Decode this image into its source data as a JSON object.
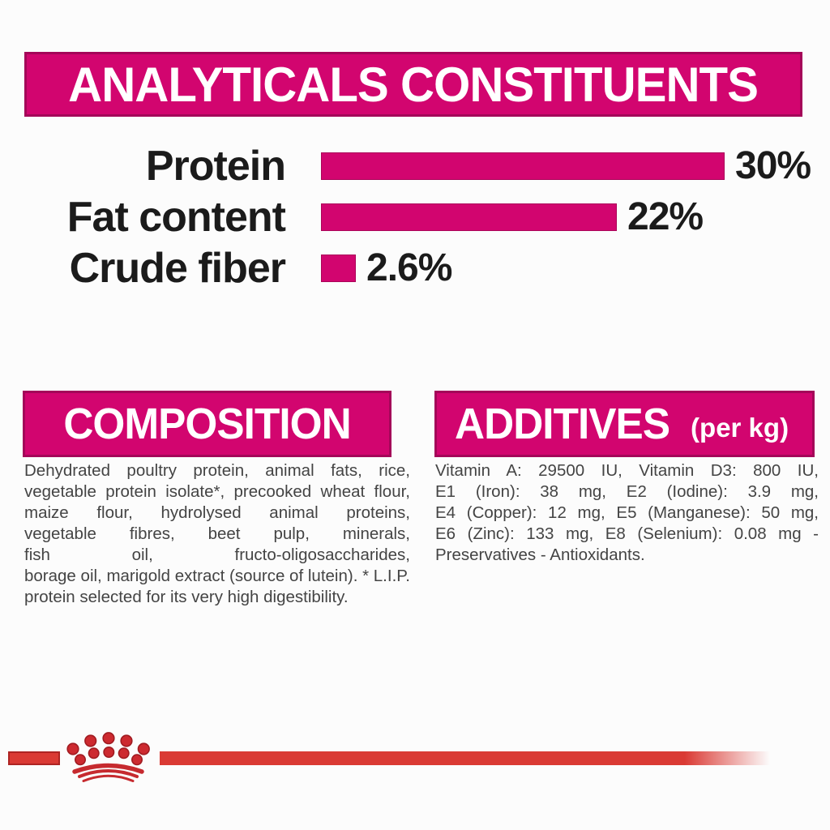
{
  "banner": {
    "title": "ANALYTICALS CONSTITUENTS",
    "bg_color": "#d2056f",
    "border_color": "#a40659",
    "text_color": "#ffffff"
  },
  "chart_data": {
    "type": "bar",
    "orientation": "horizontal",
    "categories": [
      "Protein",
      "Fat content",
      "Crude fiber"
    ],
    "values": [
      30,
      22,
      2.6
    ],
    "value_labels": [
      "30%",
      "22%",
      "2.6%"
    ],
    "bar_color": "#d2056f",
    "label_color": "#1b1b1b",
    "xlim": [
      0,
      32
    ],
    "grid": false,
    "legend": false
  },
  "sections": {
    "composition": {
      "title": "COMPOSITION",
      "body_lines": [
        "Dehydrated poultry protein, animal fats, rice,",
        "vegetable protein isolate*, precooked wheat flour,",
        "maize flour, hydrolysed animal proteins,",
        "vegetable fibres, beet pulp, minerals,",
        "fish oil, fructo-oligosaccharides,",
        "borage oil, marigold extract (source of lutein). * L.I.P.",
        "protein selected for its very high digestibility."
      ]
    },
    "additives": {
      "title": "ADDITIVES",
      "title_suffix": "(per kg)",
      "body_lines": [
        "Vitamin A: 29500 IU, Vitamin D3: 800 IU,",
        "E1 (Iron): 38 mg, E2 (Iodine): 3.9 mg,",
        "E4 (Copper): 12 mg, E5 (Manganese): 50 mg,",
        "E6 (Zinc): 133 mg, E8 (Selenium): 0.08 mg -",
        "Preservatives - Antioxidants."
      ]
    }
  },
  "footer": {
    "brand_icon": "royal-canin-crown",
    "line_color": "#da3a34",
    "crown_dot_color": "#cd2a30",
    "crown_dot_stroke": "#a01b21"
  }
}
